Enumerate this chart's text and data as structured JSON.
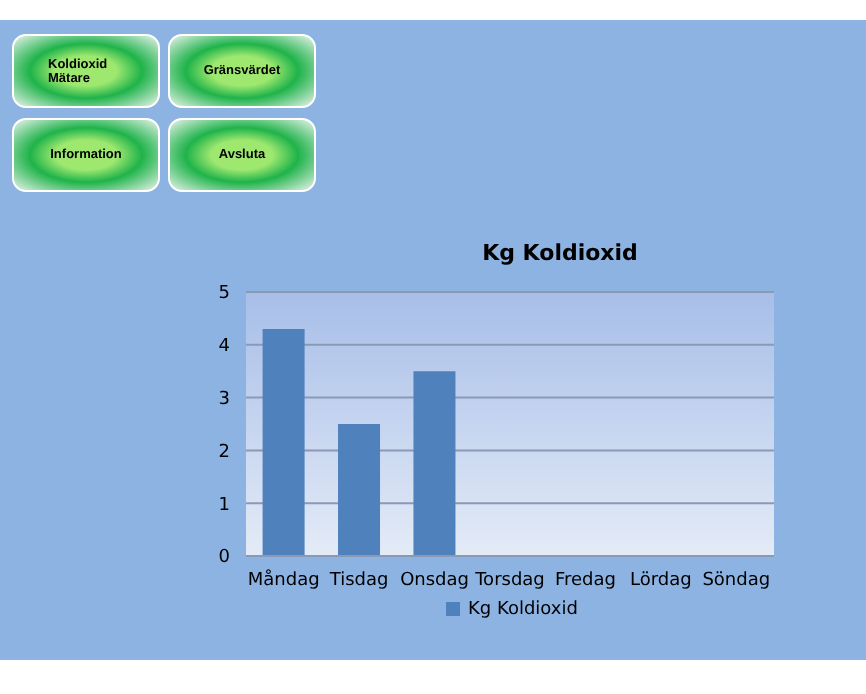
{
  "chart_data": {
    "type": "bar",
    "title": "Kg Koldioxid",
    "categories": [
      "Måndag",
      "Tisdag",
      "Onsdag",
      "Torsdag",
      "Fredag",
      "Lördag",
      "Söndag"
    ],
    "series": [
      {
        "name": "Kg Koldioxid",
        "color": "#4f81bd",
        "values": [
          4.3,
          2.5,
          3.5,
          null,
          null,
          null,
          null
        ]
      }
    ],
    "ylim": [
      0,
      5
    ],
    "yticks": [
      0,
      1,
      2,
      3,
      4,
      5
    ],
    "grid": "y",
    "legend": "bottom",
    "annotations": [
      "Koldioxid Mätare",
      "Gränsvärdet",
      "Information",
      "Avsluta"
    ]
  }
}
